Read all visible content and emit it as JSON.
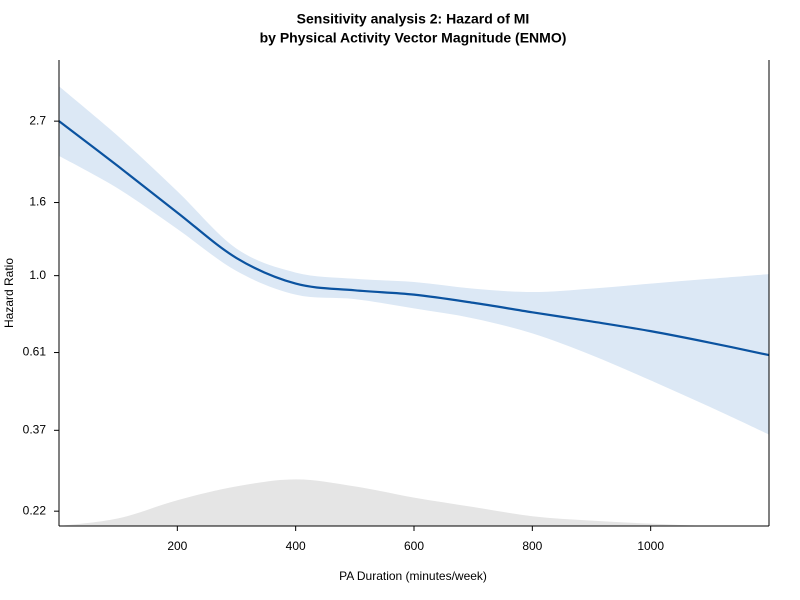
{
  "chart_data": {
    "type": "line",
    "title": "Sensitivity analysis 2: Hazard of MI",
    "subtitle": "by Physical Activity Vector Magnitude (ENMO)",
    "x_label": "PA Duration (minutes/week)",
    "y_label": "Hazard Ratio",
    "x": [
      0,
      100,
      200,
      300,
      400,
      500,
      600,
      700,
      800,
      900,
      1000,
      1100,
      1200
    ],
    "values": [
      2.7,
      2.02,
      1.5,
      1.12,
      0.95,
      0.91,
      0.885,
      0.84,
      0.79,
      0.745,
      0.7,
      0.65,
      0.6
    ],
    "ci_lower": [
      2.16,
      1.75,
      1.35,
      1.03,
      0.885,
      0.86,
      0.81,
      0.76,
      0.69,
      0.6,
      0.51,
      0.43,
      0.36
    ],
    "ci_upper": [
      3.38,
      2.45,
      1.72,
      1.19,
      1.02,
      0.98,
      0.96,
      0.92,
      0.9,
      0.92,
      0.95,
      0.98,
      1.01
    ],
    "density": [
      0.2,
      0.21,
      0.236,
      0.258,
      0.27,
      0.258,
      0.24,
      0.226,
      0.213,
      0.207,
      0.203,
      0.2,
      0.2
    ],
    "color": "#0b53a0",
    "ci_color": "#dce8f5",
    "density_color": "#e5e5e5",
    "log_scale_y": true,
    "xlim": [
      0,
      1200
    ],
    "ylim": [
      0.2,
      4.0
    ],
    "xticks": [
      200,
      400,
      600,
      800,
      1000
    ],
    "yticks": [
      0.22,
      0.37,
      0.61,
      {
        "value": 1,
        "label": "1.0"
      },
      1.6,
      2.7
    ]
  }
}
